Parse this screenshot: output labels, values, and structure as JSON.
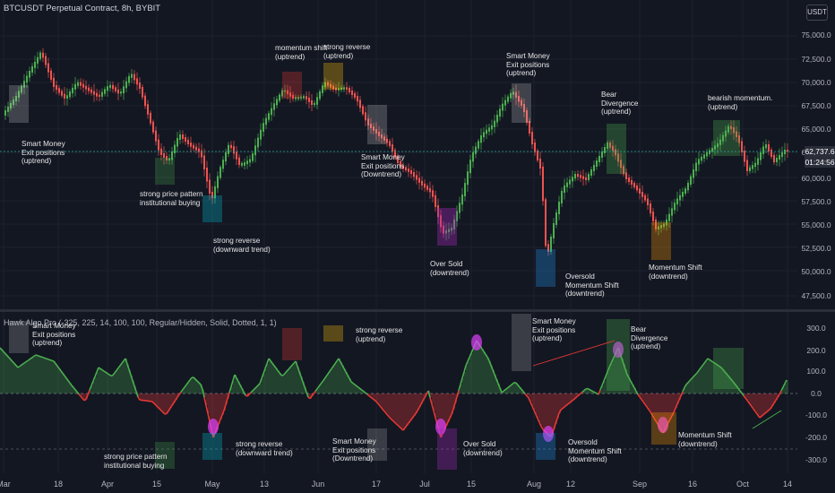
{
  "symbol": "BTCUSDT Perpetual Contract, 8h, BYBIT",
  "currency_button": "USDT",
  "indicator_title": "Hawk Algo Pro (-325, 225, 14, 100, 100, Regular/Hidden, Solid, Dotted, 1, 1)",
  "price_axis": [
    "75,000.0",
    "72,500.0",
    "70,000.0",
    "67,500.0",
    "65,000.0",
    "62,500.0",
    "60,000.0",
    "57,500.0",
    "55,000.0",
    "52,500.0",
    "50,000.0",
    "47,500.0"
  ],
  "current_price": {
    "price": "62,737.6",
    "countdown": "01:24:56"
  },
  "indicator_axis": [
    "300.0",
    "200.0",
    "100.0",
    "0.0",
    "-100.0",
    "-200.0",
    "-300.0"
  ],
  "time_axis": [
    "Mar",
    "18",
    "Apr",
    "15",
    "May",
    "13",
    "Jun",
    "17",
    "Jul",
    "15",
    "Aug",
    "12",
    "Sep",
    "16",
    "Oct",
    "14"
  ],
  "annotations": {
    "main": [
      "Smart Money\nExit positions\n(uptrend)",
      "strong price pattern\ninstitutional buying",
      "strong reverse\n(downward trend)",
      "momentum shift\n(uptrend)",
      "strong reverse\n(uptrend)",
      "Smart Money\nExit positions\n(Downtrend)",
      "Over Sold\n(downtrend)",
      "Smart Money\nExit positions\n(uptrend)",
      "Oversold\nMomentum Shift\n(downtrend)",
      "Bear\nDivergence\n(uptrend)",
      "Momentum Shift\n(downtrend)",
      "bearish momentum.\n(uptrend)"
    ],
    "indicator": [
      "Smart Money\nExit positions\n(uptrend)",
      "strong reverse\n(uptrend)",
      "strong price pattern\ninstitutional buying",
      "strong reverse\n(downward trend)",
      "Smart Money\nExit positions\n(Downtrend)",
      "Over Sold\n(downtrend)",
      "Smart Money\nExit positions\n(uptrend)",
      "Oversold\nMomentum Shift\n(downtrend)",
      "Bear\nDivergence\n(uptrend)",
      "Momentum Shift\n(downtrend)"
    ]
  },
  "colors": {
    "background": "#131722",
    "bull": "#26a69a",
    "bear": "#ef5350",
    "osc_bull": "#4caf50",
    "osc_bear": "#e53935",
    "pink": "#e040fb",
    "grid": "#1e222d"
  }
}
